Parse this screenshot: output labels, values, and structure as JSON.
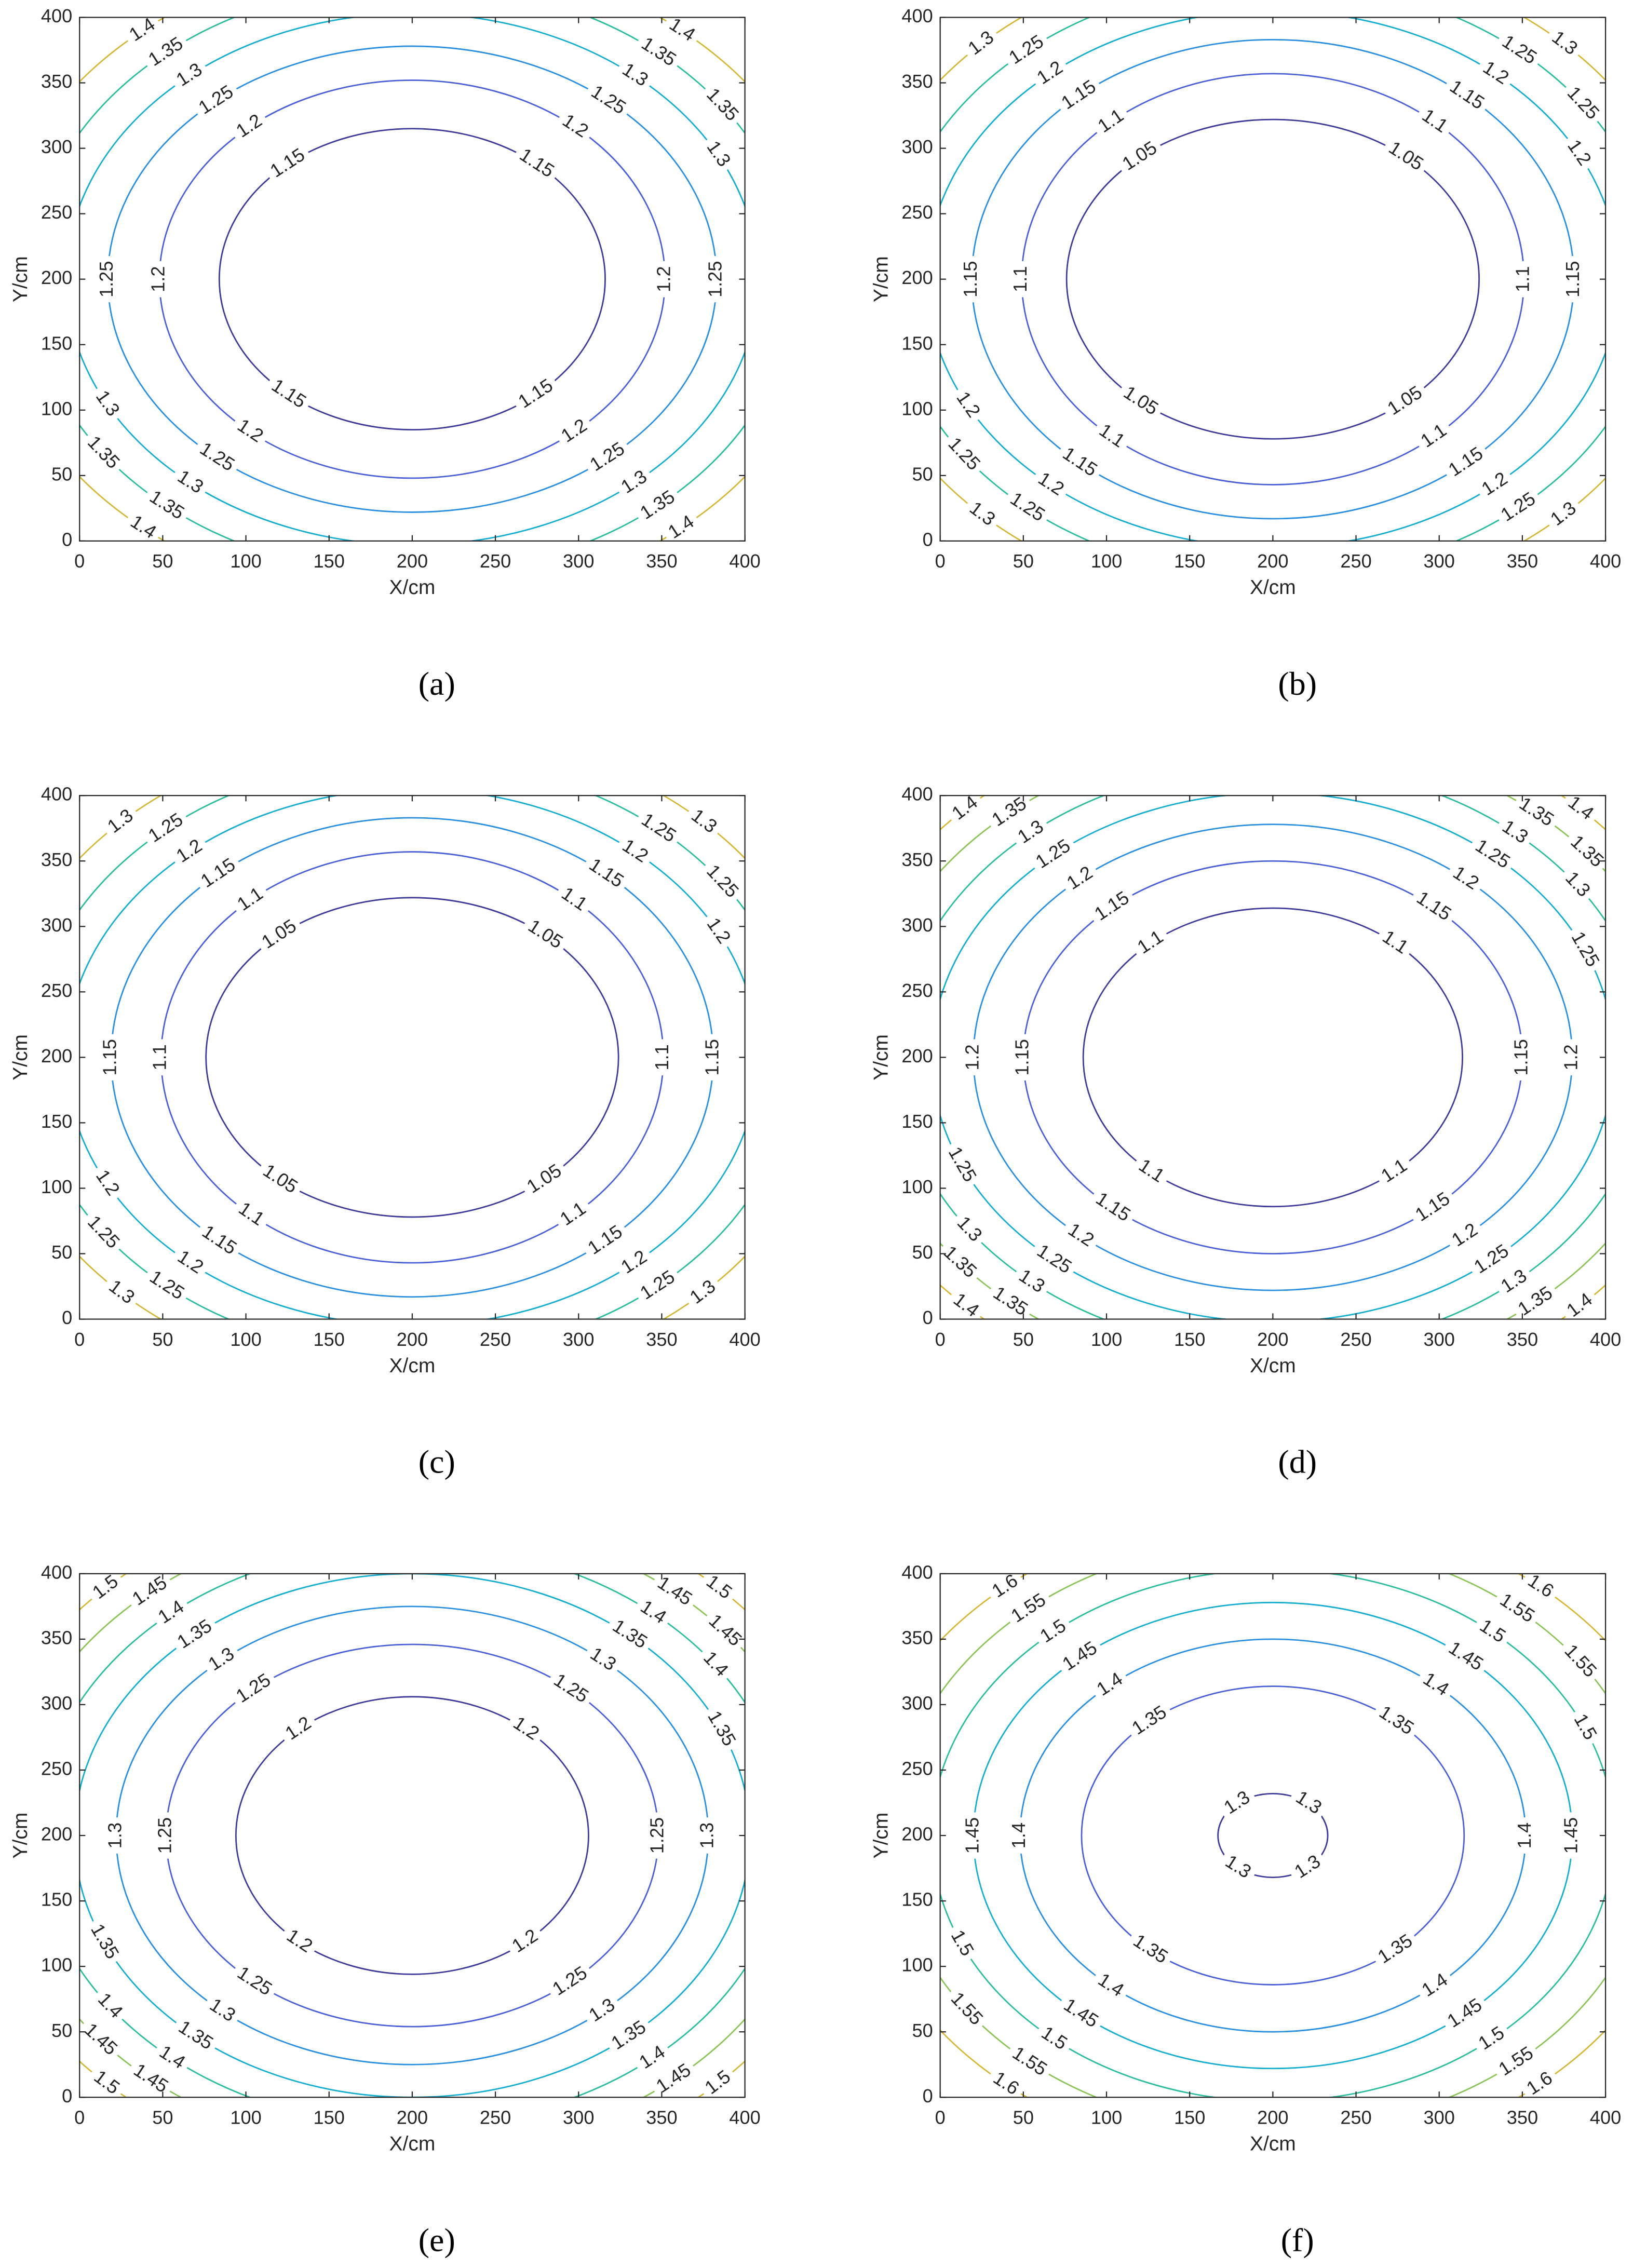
{
  "chart_data": [
    {
      "type": "contour",
      "caption": "(a)",
      "xlabel": "X/cm",
      "ylabel": "Y/cm",
      "xlim": [
        0,
        400
      ],
      "ylim": [
        0,
        400
      ],
      "xticks": [
        0,
        50,
        100,
        150,
        200,
        250,
        300,
        350,
        400
      ],
      "yticks": [
        0,
        50,
        100,
        150,
        200,
        250,
        300,
        350,
        400
      ],
      "center": [
        200,
        200
      ],
      "contours": [
        {
          "level": 1.15,
          "rx": 116,
          "ry": 115,
          "color": "#3e3a9a"
        },
        {
          "level": 1.2,
          "rx": 152,
          "ry": 152,
          "color": "#4b5fd6"
        },
        {
          "level": 1.25,
          "rx": 183,
          "ry": 178,
          "color": "#2a8fdf"
        },
        {
          "level": 1.3,
          "rx": 208,
          "ry": 203,
          "color": "#15aecf"
        },
        {
          "level": 1.35,
          "rx": 230,
          "ry": 226,
          "color": "#2cbd9c"
        },
        {
          "level": 1.4,
          "rx": 252,
          "ry": 248,
          "color": "#d4b83a"
        }
      ]
    },
    {
      "type": "contour",
      "caption": "(b)",
      "xlabel": "X/cm",
      "ylabel": "Y/cm",
      "xlim": [
        0,
        400
      ],
      "ylim": [
        0,
        400
      ],
      "xticks": [
        0,
        50,
        100,
        150,
        200,
        250,
        300,
        350,
        400
      ],
      "yticks": [
        0,
        50,
        100,
        150,
        200,
        250,
        300,
        350,
        400
      ],
      "center": [
        200,
        200
      ],
      "contours": [
        {
          "level": 1.05,
          "rx": 124,
          "ry": 122,
          "color": "#3e3a9a"
        },
        {
          "level": 1.1,
          "rx": 151,
          "ry": 157,
          "color": "#4b5fd6"
        },
        {
          "level": 1.15,
          "rx": 181,
          "ry": 183,
          "color": "#2a8fdf"
        },
        {
          "level": 1.2,
          "rx": 208,
          "ry": 205,
          "color": "#15aecf"
        },
        {
          "level": 1.25,
          "rx": 230,
          "ry": 228,
          "color": "#2cbd9c"
        },
        {
          "level": 1.3,
          "rx": 252,
          "ry": 250,
          "color": "#d4b83a"
        }
      ]
    },
    {
      "type": "contour",
      "caption": "(c)",
      "xlabel": "X/cm",
      "ylabel": "Y/cm",
      "xlim": [
        0,
        400
      ],
      "ylim": [
        0,
        400
      ],
      "xticks": [
        0,
        50,
        100,
        150,
        200,
        250,
        300,
        350,
        400
      ],
      "yticks": [
        0,
        50,
        100,
        150,
        200,
        250,
        300,
        350,
        400
      ],
      "center": [
        200,
        200
      ],
      "contours": [
        {
          "level": 1.05,
          "rx": 124,
          "ry": 122,
          "color": "#3e3a9a"
        },
        {
          "level": 1.1,
          "rx": 151,
          "ry": 157,
          "color": "#4b5fd6"
        },
        {
          "level": 1.15,
          "rx": 181,
          "ry": 183,
          "color": "#2a8fdf"
        },
        {
          "level": 1.2,
          "rx": 208,
          "ry": 205,
          "color": "#15aecf"
        },
        {
          "level": 1.25,
          "rx": 230,
          "ry": 228,
          "color": "#2cbd9c"
        },
        {
          "level": 1.3,
          "rx": 252,
          "ry": 250,
          "color": "#d4b83a"
        }
      ]
    },
    {
      "type": "contour",
      "caption": "(d)",
      "xlabel": "X/cm",
      "ylabel": "Y/cm",
      "xlim": [
        0,
        400
      ],
      "ylim": [
        0,
        400
      ],
      "xticks": [
        0,
        50,
        100,
        150,
        200,
        250,
        300,
        350,
        400
      ],
      "yticks": [
        0,
        50,
        100,
        150,
        200,
        250,
        300,
        350,
        400
      ],
      "center": [
        200,
        200
      ],
      "contours": [
        {
          "level": 1.1,
          "rx": 114,
          "ry": 114,
          "color": "#3e3a9a"
        },
        {
          "level": 1.15,
          "rx": 150,
          "ry": 150,
          "color": "#4b5fd6"
        },
        {
          "level": 1.2,
          "rx": 180,
          "ry": 178,
          "color": "#2a8fdf"
        },
        {
          "level": 1.25,
          "rx": 205,
          "ry": 202,
          "color": "#15aecf"
        },
        {
          "level": 1.3,
          "rx": 226,
          "ry": 224,
          "color": "#2cbd9c"
        },
        {
          "level": 1.35,
          "rx": 246,
          "ry": 244,
          "color": "#8cc45a"
        },
        {
          "level": 1.4,
          "rx": 266,
          "ry": 264,
          "color": "#d4b83a"
        }
      ]
    },
    {
      "type": "contour",
      "caption": "(e)",
      "xlabel": "X/cm",
      "ylabel": "Y/cm",
      "xlim": [
        0,
        400
      ],
      "ylim": [
        0,
        400
      ],
      "xticks": [
        0,
        50,
        100,
        150,
        200,
        250,
        300,
        350,
        400
      ],
      "yticks": [
        0,
        50,
        100,
        150,
        200,
        250,
        300,
        350,
        400
      ],
      "center": [
        200,
        200
      ],
      "contours": [
        {
          "level": 1.2,
          "rx": 106,
          "ry": 106,
          "color": "#3e3a9a"
        },
        {
          "level": 1.25,
          "rx": 148,
          "ry": 146,
          "color": "#4b5fd6"
        },
        {
          "level": 1.3,
          "rx": 178,
          "ry": 175,
          "color": "#2a8fdf"
        },
        {
          "level": 1.35,
          "rx": 203,
          "ry": 200,
          "color": "#15aecf"
        },
        {
          "level": 1.4,
          "rx": 225,
          "ry": 222,
          "color": "#2cbd9c"
        },
        {
          "level": 1.45,
          "rx": 245,
          "ry": 243,
          "color": "#8cc45a"
        },
        {
          "level": 1.5,
          "rx": 265,
          "ry": 263,
          "color": "#d4b83a"
        }
      ]
    },
    {
      "type": "contour",
      "caption": "(f)",
      "xlabel": "X/cm",
      "ylabel": "Y/cm",
      "xlim": [
        0,
        400
      ],
      "ylim": [
        0,
        400
      ],
      "xticks": [
        0,
        50,
        100,
        150,
        200,
        250,
        300,
        350,
        400
      ],
      "yticks": [
        0,
        50,
        100,
        150,
        200,
        250,
        300,
        350,
        400
      ],
      "center": [
        200,
        200
      ],
      "contours": [
        {
          "level": 1.3,
          "rx": 33,
          "ry": 32,
          "color": "#3e3a9a"
        },
        {
          "level": 1.35,
          "rx": 115,
          "ry": 114,
          "color": "#4b5fd6"
        },
        {
          "level": 1.4,
          "rx": 152,
          "ry": 150,
          "color": "#2a8fdf"
        },
        {
          "level": 1.45,
          "rx": 180,
          "ry": 178,
          "color": "#15aecf"
        },
        {
          "level": 1.5,
          "rx": 205,
          "ry": 203,
          "color": "#2cbd9c"
        },
        {
          "level": 1.55,
          "rx": 228,
          "ry": 226,
          "color": "#8cc45a"
        },
        {
          "level": 1.6,
          "rx": 250,
          "ry": 248,
          "color": "#d4b83a"
        }
      ]
    }
  ]
}
